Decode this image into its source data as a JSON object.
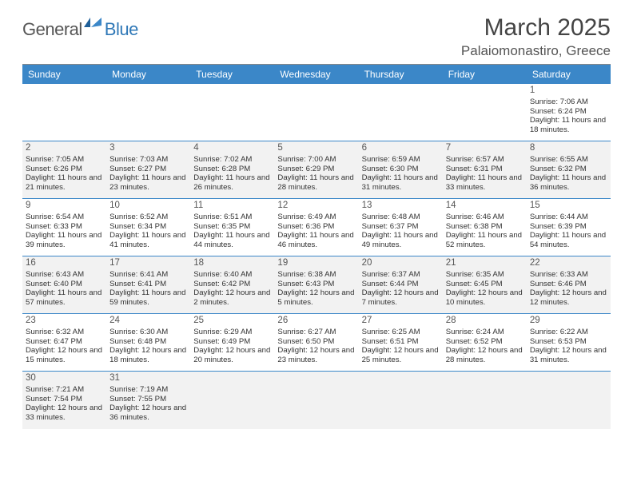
{
  "logo": {
    "general": "General",
    "blue": "Blue"
  },
  "title": "March 2025",
  "location": "Palaiomonastiro, Greece",
  "colors": {
    "header_bg": "#3b87c8",
    "header_text": "#ffffff",
    "border": "#3b87c8",
    "shaded_bg": "#f2f2f2",
    "text": "#333333",
    "title_color": "#444444"
  },
  "weekdays": [
    "Sunday",
    "Monday",
    "Tuesday",
    "Wednesday",
    "Thursday",
    "Friday",
    "Saturday"
  ],
  "weeks": [
    [
      {
        "blank": true
      },
      {
        "blank": true
      },
      {
        "blank": true
      },
      {
        "blank": true
      },
      {
        "blank": true
      },
      {
        "blank": true
      },
      {
        "day": "1",
        "sunrise": "Sunrise: 7:06 AM",
        "sunset": "Sunset: 6:24 PM",
        "daylight": "Daylight: 11 hours and 18 minutes."
      }
    ],
    [
      {
        "day": "2",
        "sunrise": "Sunrise: 7:05 AM",
        "sunset": "Sunset: 6:26 PM",
        "daylight": "Daylight: 11 hours and 21 minutes.",
        "shaded": true
      },
      {
        "day": "3",
        "sunrise": "Sunrise: 7:03 AM",
        "sunset": "Sunset: 6:27 PM",
        "daylight": "Daylight: 11 hours and 23 minutes.",
        "shaded": true
      },
      {
        "day": "4",
        "sunrise": "Sunrise: 7:02 AM",
        "sunset": "Sunset: 6:28 PM",
        "daylight": "Daylight: 11 hours and 26 minutes.",
        "shaded": true
      },
      {
        "day": "5",
        "sunrise": "Sunrise: 7:00 AM",
        "sunset": "Sunset: 6:29 PM",
        "daylight": "Daylight: 11 hours and 28 minutes.",
        "shaded": true
      },
      {
        "day": "6",
        "sunrise": "Sunrise: 6:59 AM",
        "sunset": "Sunset: 6:30 PM",
        "daylight": "Daylight: 11 hours and 31 minutes.",
        "shaded": true
      },
      {
        "day": "7",
        "sunrise": "Sunrise: 6:57 AM",
        "sunset": "Sunset: 6:31 PM",
        "daylight": "Daylight: 11 hours and 33 minutes.",
        "shaded": true
      },
      {
        "day": "8",
        "sunrise": "Sunrise: 6:55 AM",
        "sunset": "Sunset: 6:32 PM",
        "daylight": "Daylight: 11 hours and 36 minutes.",
        "shaded": true
      }
    ],
    [
      {
        "day": "9",
        "sunrise": "Sunrise: 6:54 AM",
        "sunset": "Sunset: 6:33 PM",
        "daylight": "Daylight: 11 hours and 39 minutes."
      },
      {
        "day": "10",
        "sunrise": "Sunrise: 6:52 AM",
        "sunset": "Sunset: 6:34 PM",
        "daylight": "Daylight: 11 hours and 41 minutes."
      },
      {
        "day": "11",
        "sunrise": "Sunrise: 6:51 AM",
        "sunset": "Sunset: 6:35 PM",
        "daylight": "Daylight: 11 hours and 44 minutes."
      },
      {
        "day": "12",
        "sunrise": "Sunrise: 6:49 AM",
        "sunset": "Sunset: 6:36 PM",
        "daylight": "Daylight: 11 hours and 46 minutes."
      },
      {
        "day": "13",
        "sunrise": "Sunrise: 6:48 AM",
        "sunset": "Sunset: 6:37 PM",
        "daylight": "Daylight: 11 hours and 49 minutes."
      },
      {
        "day": "14",
        "sunrise": "Sunrise: 6:46 AM",
        "sunset": "Sunset: 6:38 PM",
        "daylight": "Daylight: 11 hours and 52 minutes."
      },
      {
        "day": "15",
        "sunrise": "Sunrise: 6:44 AM",
        "sunset": "Sunset: 6:39 PM",
        "daylight": "Daylight: 11 hours and 54 minutes."
      }
    ],
    [
      {
        "day": "16",
        "sunrise": "Sunrise: 6:43 AM",
        "sunset": "Sunset: 6:40 PM",
        "daylight": "Daylight: 11 hours and 57 minutes.",
        "shaded": true
      },
      {
        "day": "17",
        "sunrise": "Sunrise: 6:41 AM",
        "sunset": "Sunset: 6:41 PM",
        "daylight": "Daylight: 11 hours and 59 minutes.",
        "shaded": true
      },
      {
        "day": "18",
        "sunrise": "Sunrise: 6:40 AM",
        "sunset": "Sunset: 6:42 PM",
        "daylight": "Daylight: 12 hours and 2 minutes.",
        "shaded": true
      },
      {
        "day": "19",
        "sunrise": "Sunrise: 6:38 AM",
        "sunset": "Sunset: 6:43 PM",
        "daylight": "Daylight: 12 hours and 5 minutes.",
        "shaded": true
      },
      {
        "day": "20",
        "sunrise": "Sunrise: 6:37 AM",
        "sunset": "Sunset: 6:44 PM",
        "daylight": "Daylight: 12 hours and 7 minutes.",
        "shaded": true
      },
      {
        "day": "21",
        "sunrise": "Sunrise: 6:35 AM",
        "sunset": "Sunset: 6:45 PM",
        "daylight": "Daylight: 12 hours and 10 minutes.",
        "shaded": true
      },
      {
        "day": "22",
        "sunrise": "Sunrise: 6:33 AM",
        "sunset": "Sunset: 6:46 PM",
        "daylight": "Daylight: 12 hours and 12 minutes.",
        "shaded": true
      }
    ],
    [
      {
        "day": "23",
        "sunrise": "Sunrise: 6:32 AM",
        "sunset": "Sunset: 6:47 PM",
        "daylight": "Daylight: 12 hours and 15 minutes."
      },
      {
        "day": "24",
        "sunrise": "Sunrise: 6:30 AM",
        "sunset": "Sunset: 6:48 PM",
        "daylight": "Daylight: 12 hours and 18 minutes."
      },
      {
        "day": "25",
        "sunrise": "Sunrise: 6:29 AM",
        "sunset": "Sunset: 6:49 PM",
        "daylight": "Daylight: 12 hours and 20 minutes."
      },
      {
        "day": "26",
        "sunrise": "Sunrise: 6:27 AM",
        "sunset": "Sunset: 6:50 PM",
        "daylight": "Daylight: 12 hours and 23 minutes."
      },
      {
        "day": "27",
        "sunrise": "Sunrise: 6:25 AM",
        "sunset": "Sunset: 6:51 PM",
        "daylight": "Daylight: 12 hours and 25 minutes."
      },
      {
        "day": "28",
        "sunrise": "Sunrise: 6:24 AM",
        "sunset": "Sunset: 6:52 PM",
        "daylight": "Daylight: 12 hours and 28 minutes."
      },
      {
        "day": "29",
        "sunrise": "Sunrise: 6:22 AM",
        "sunset": "Sunset: 6:53 PM",
        "daylight": "Daylight: 12 hours and 31 minutes."
      }
    ],
    [
      {
        "day": "30",
        "sunrise": "Sunrise: 7:21 AM",
        "sunset": "Sunset: 7:54 PM",
        "daylight": "Daylight: 12 hours and 33 minutes.",
        "shaded": true
      },
      {
        "day": "31",
        "sunrise": "Sunrise: 7:19 AM",
        "sunset": "Sunset: 7:55 PM",
        "daylight": "Daylight: 12 hours and 36 minutes.",
        "shaded": true
      },
      {
        "blank": true,
        "shaded": true
      },
      {
        "blank": true,
        "shaded": true
      },
      {
        "blank": true,
        "shaded": true
      },
      {
        "blank": true,
        "shaded": true
      },
      {
        "blank": true,
        "shaded": true
      }
    ]
  ]
}
